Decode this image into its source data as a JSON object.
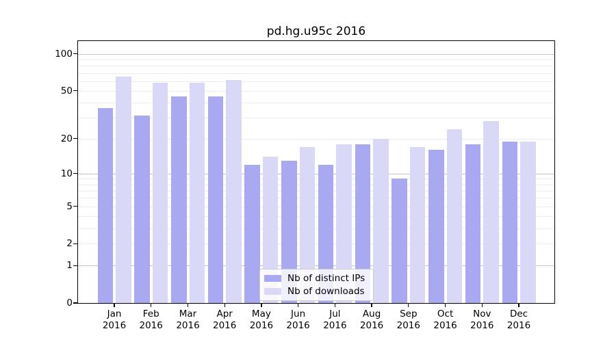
{
  "title": "pd.hg.u95c 2016",
  "colors": {
    "bar_distinct_ips": "#a9a9f2",
    "bar_downloads": "#d9d9f7",
    "grid_major": "#c3c3c3",
    "grid_minor": "#ececec",
    "axis": "#000000"
  },
  "legend": {
    "items": [
      {
        "key": "distinct-ips",
        "label": "Nb of distinct IPs",
        "color": "#a9a9f2"
      },
      {
        "key": "downloads",
        "label": "Nb of downloads",
        "color": "#d9d9f7"
      }
    ]
  },
  "chart_data": {
    "type": "bar",
    "title": "pd.hg.u95c 2016",
    "scale": "log1p",
    "categories": [
      "Jan",
      "Feb",
      "Mar",
      "Apr",
      "May",
      "Jun",
      "Jul",
      "Aug",
      "Sep",
      "Oct",
      "Nov",
      "Dec"
    ],
    "year_label": "2016",
    "series": [
      {
        "name": "Nb of distinct IPs",
        "color": "#a9a9f2",
        "values": [
          36,
          31,
          45,
          45,
          12,
          13,
          12,
          18,
          9,
          16,
          18,
          19
        ]
      },
      {
        "name": "Nb of downloads",
        "color": "#d9d9f7",
        "values": [
          65,
          58,
          58,
          61,
          14,
          17,
          18,
          20,
          17,
          24,
          28,
          19
        ]
      }
    ],
    "xlabel": "",
    "ylabel": "",
    "ylim": [
      0,
      127
    ],
    "yticks": [
      0,
      1,
      2,
      5,
      10,
      20,
      50,
      100
    ],
    "grid": {
      "major_values": [
        1,
        10,
        100
      ],
      "minor_values": [
        2,
        3,
        4,
        5,
        6,
        7,
        8,
        9,
        20,
        30,
        40,
        50,
        60,
        70,
        80,
        90
      ]
    },
    "legend_position": "bottom-center",
    "grid_on": true
  }
}
